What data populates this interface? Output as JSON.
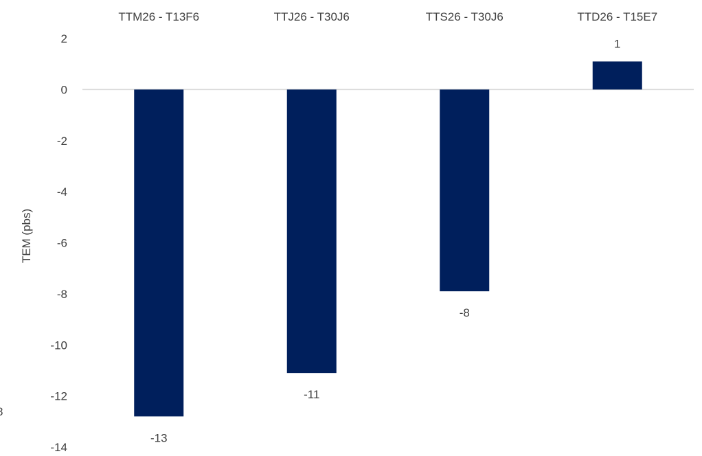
{
  "chart_data": {
    "type": "bar",
    "categories": [
      "TTM26 - T13F6",
      "TTJ26 - T30J6",
      "TTS26 - T30J6",
      "TTD26 - T15E7"
    ],
    "values": [
      -12.8,
      -11.1,
      -7.9,
      1.1
    ],
    "data_labels": [
      "-13",
      "-11",
      "-8",
      "1"
    ],
    "ylabel": "TEM (pbs)",
    "ylim": [
      -14,
      2
    ],
    "y_ticks": [
      2,
      0,
      -2,
      -4,
      -6,
      -8,
      -10,
      -12,
      -14
    ],
    "category_axis_position": "top",
    "grid": false,
    "legend": "none",
    "colors": {
      "bar": "#001f5c",
      "text": "#404040",
      "zero_line": "#d9d9d9"
    },
    "stray_text": "8"
  }
}
